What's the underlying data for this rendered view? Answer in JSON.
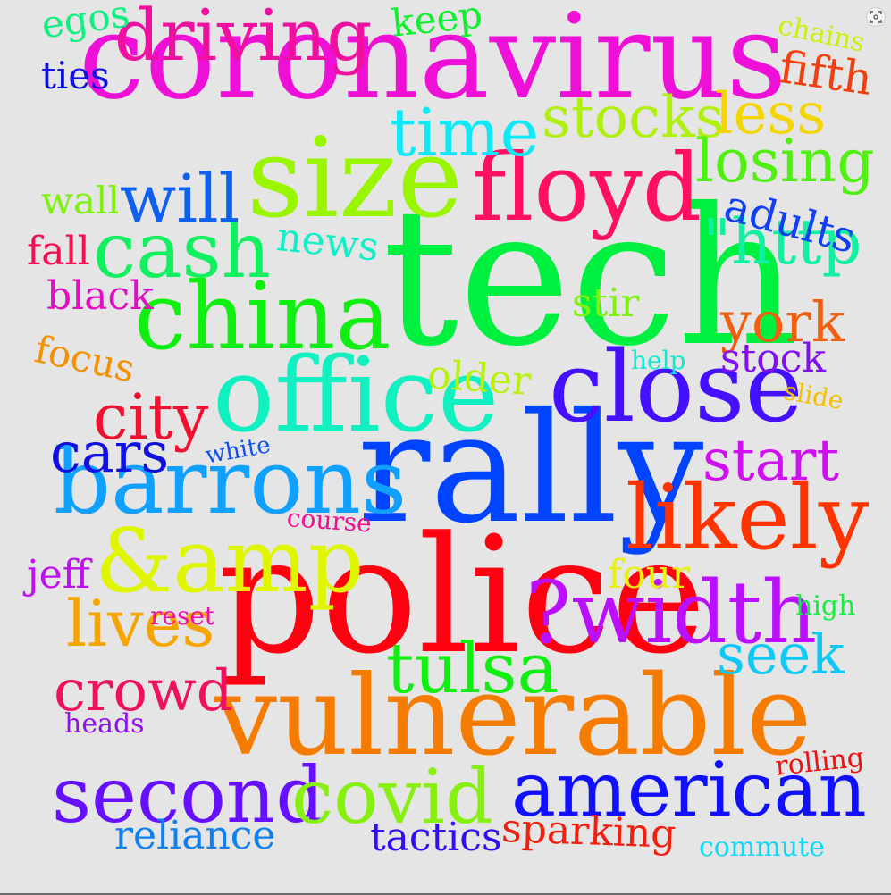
{
  "tool_icon": "fit-to-screen-icon",
  "words": [
    {
      "t": "coronavirus",
      "c": "#ee10d6"
    },
    {
      "t": "tech",
      "c": "#00f040"
    },
    {
      "t": "police",
      "c": "#ff0010"
    },
    {
      "t": "vulnerable",
      "c": "#f57c00"
    },
    {
      "t": "rally",
      "c": "#0044ff"
    },
    {
      "t": "size",
      "c": "#99f500"
    },
    {
      "t": "office",
      "c": "#10f0c0"
    },
    {
      "t": "china",
      "c": "#10f010"
    },
    {
      "t": "floyd",
      "c": "#ff1060"
    },
    {
      "t": "barrons",
      "c": "#10a0ff"
    },
    {
      "t": "close",
      "c": "#4410ff"
    },
    {
      "t": "&amp",
      "c": "#e0f500"
    },
    {
      "t": "likely",
      "c": "#ff3300"
    },
    {
      "t": "?width",
      "c": "#bb10ff"
    },
    {
      "t": "american",
      "c": "#1010ff"
    },
    {
      "t": "second",
      "c": "#6610ff"
    },
    {
      "t": "covid",
      "c": "#88f010"
    },
    {
      "t": "cash",
      "c": "#10f060"
    },
    {
      "t": "driving",
      "c": "#f010a0"
    },
    {
      "t": "tulsa",
      "c": "#10f010"
    },
    {
      "t": "time",
      "c": "#10e8f5"
    },
    {
      "t": "will",
      "c": "#1060f0"
    },
    {
      "t": "stocks",
      "c": "#b0f010"
    },
    {
      "t": "losing",
      "c": "#50f010"
    },
    {
      "t": "\"http",
      "c": "#10f0a0"
    },
    {
      "t": "city",
      "c": "#f01030"
    },
    {
      "t": "lives",
      "c": "#f5a500"
    },
    {
      "t": "crowd",
      "c": "#f0105f"
    },
    {
      "t": "seek",
      "c": "#10c8f5"
    },
    {
      "t": "start",
      "c": "#d010f0"
    },
    {
      "t": "york",
      "c": "#f06010"
    },
    {
      "t": "less",
      "c": "#f5d500"
    },
    {
      "t": "cars",
      "c": "#1010e0"
    },
    {
      "t": "adults",
      "c": "#1040f0"
    },
    {
      "t": "fifth",
      "c": "#f04010"
    },
    {
      "t": "news",
      "c": "#10f0c8"
    },
    {
      "t": "older",
      "c": "#b8f010"
    },
    {
      "t": "stock",
      "c": "#8010f0"
    },
    {
      "t": "four",
      "c": "#e8f010"
    },
    {
      "t": "sparking",
      "c": "#f02010"
    },
    {
      "t": "tactics",
      "c": "#3010f0"
    },
    {
      "t": "reliance",
      "c": "#1080f0"
    },
    {
      "t": "stir",
      "c": "#80f010"
    },
    {
      "t": "black",
      "c": "#e010c0"
    },
    {
      "t": "focus",
      "c": "#f59000"
    },
    {
      "t": "fall",
      "c": "#f01050"
    },
    {
      "t": "wall",
      "c": "#80f010"
    },
    {
      "t": "ties",
      "c": "#1010e0"
    },
    {
      "t": "egos",
      "c": "#10f080"
    },
    {
      "t": "keep",
      "c": "#10f030"
    },
    {
      "t": "jeff",
      "c": "#c010f0"
    },
    {
      "t": "chains",
      "c": "#c8f010"
    },
    {
      "t": "help",
      "c": "#10e8d0"
    },
    {
      "t": "slide",
      "c": "#f5c000"
    },
    {
      "t": "white",
      "c": "#1050f0"
    },
    {
      "t": "course",
      "c": "#f01090"
    },
    {
      "t": "reset",
      "c": "#f010b0"
    },
    {
      "t": "high",
      "c": "#10f040"
    },
    {
      "t": "heads",
      "c": "#9010f0"
    },
    {
      "t": "rolling",
      "c": "#f01010"
    },
    {
      "t": "commute",
      "c": "#10d8f5"
    }
  ]
}
